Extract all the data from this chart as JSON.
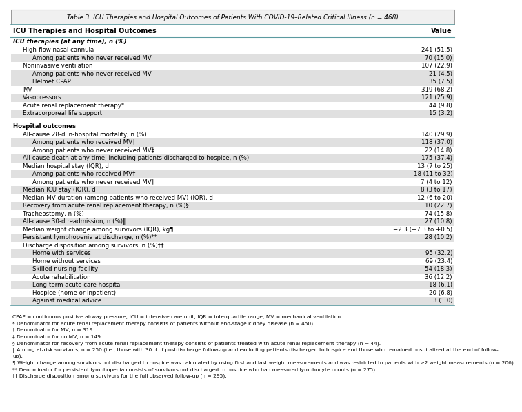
{
  "title": "Table 3. ICU Therapies and Hospital Outcomes of Patients With COVID-19–Related Critical Illness (n = 468)",
  "col1_header": "ICU Therapies and Hospital Outcomes",
  "col2_header": "Value",
  "rows": [
    {
      "label": "ICU therapies (at any time), n (%)",
      "value": "",
      "indent": 0,
      "bold": true,
      "italic": true,
      "shaded": false
    },
    {
      "label": "High-flow nasal cannula",
      "value": "241 (51.5)",
      "indent": 1,
      "bold": false,
      "italic": false,
      "shaded": false
    },
    {
      "label": "Among patients who never received MV",
      "value": "70 (15.0)",
      "indent": 2,
      "bold": false,
      "italic": false,
      "shaded": true
    },
    {
      "label": "Noninvasive ventilation",
      "value": "107 (22.9)",
      "indent": 1,
      "bold": false,
      "italic": false,
      "shaded": false
    },
    {
      "label": "Among patients who never received MV",
      "value": "21 (4.5)",
      "indent": 2,
      "bold": false,
      "italic": false,
      "shaded": true
    },
    {
      "label": "Helmet CPAP",
      "value": "35 (7.5)",
      "indent": 2,
      "bold": false,
      "italic": false,
      "shaded": true
    },
    {
      "label": "MV",
      "value": "319 (68.2)",
      "indent": 1,
      "bold": false,
      "italic": false,
      "shaded": false
    },
    {
      "label": "Vasopressors",
      "value": "121 (25.9)",
      "indent": 1,
      "bold": false,
      "italic": false,
      "shaded": true
    },
    {
      "label": "Acute renal replacement therapy*",
      "value": "44 (9.8)",
      "indent": 1,
      "bold": false,
      "italic": false,
      "shaded": false
    },
    {
      "label": "Extracorporeal life support",
      "value": "15 (3.2)",
      "indent": 1,
      "bold": false,
      "italic": false,
      "shaded": true
    },
    {
      "label": "",
      "value": "",
      "indent": 0,
      "bold": false,
      "italic": false,
      "shaded": false,
      "spacer": true
    },
    {
      "label": "Hospital outcomes",
      "value": "",
      "indent": 0,
      "bold": true,
      "italic": false,
      "shaded": false
    },
    {
      "label": "All-cause 28-d in-hospital mortality, n (%)",
      "value": "140 (29.9)",
      "indent": 1,
      "bold": false,
      "italic": false,
      "shaded": false
    },
    {
      "label": "Among patients who received MV†",
      "value": "118 (37.0)",
      "indent": 2,
      "bold": false,
      "italic": false,
      "shaded": true
    },
    {
      "label": "Among patients who never received MV‡",
      "value": "22 (14.8)",
      "indent": 2,
      "bold": false,
      "italic": false,
      "shaded": false
    },
    {
      "label": "All-cause death at any time, including patients discharged to hospice, n (%)",
      "value": "175 (37.4)",
      "indent": 1,
      "bold": false,
      "italic": false,
      "shaded": true
    },
    {
      "label": "Median hospital stay (IQR), d",
      "value": "13 (7 to 25)",
      "indent": 1,
      "bold": false,
      "italic": false,
      "shaded": false
    },
    {
      "label": "Among patients who received MV†",
      "value": "18 (11 to 32)",
      "indent": 2,
      "bold": false,
      "italic": false,
      "shaded": true
    },
    {
      "label": "Among patients who never received MV‡",
      "value": "7 (4 to 12)",
      "indent": 2,
      "bold": false,
      "italic": false,
      "shaded": false
    },
    {
      "label": "Median ICU stay (IQR), d",
      "value": "8 (3 to 17)",
      "indent": 1,
      "bold": false,
      "italic": false,
      "shaded": true
    },
    {
      "label": "Median MV duration (among patients who received MV) (IQR), d",
      "value": "12 (6 to 20)",
      "indent": 1,
      "bold": false,
      "italic": false,
      "shaded": false
    },
    {
      "label": "Recovery from acute renal replacement therapy, n (%)§",
      "value": "10 (22.7)",
      "indent": 1,
      "bold": false,
      "italic": false,
      "shaded": true
    },
    {
      "label": "Tracheostomy, n (%)",
      "value": "74 (15.8)",
      "indent": 1,
      "bold": false,
      "italic": false,
      "shaded": false
    },
    {
      "label": "All-cause 30-d readmission, n (%)‖",
      "value": "27 (10.8)",
      "indent": 1,
      "bold": false,
      "italic": false,
      "shaded": true
    },
    {
      "label": "Median weight change among survivors (IQR), kg¶",
      "value": "−2.3 (−7.3 to +0.5)",
      "indent": 1,
      "bold": false,
      "italic": false,
      "shaded": false
    },
    {
      "label": "Persistent lymphopenia at discharge, n (%)**",
      "value": "28 (10.2)",
      "indent": 1,
      "bold": false,
      "italic": false,
      "shaded": true
    },
    {
      "label": "Discharge disposition among survivors, n (%)††",
      "value": "",
      "indent": 1,
      "bold": false,
      "italic": false,
      "shaded": false
    },
    {
      "label": "Home with services",
      "value": "95 (32.2)",
      "indent": 2,
      "bold": false,
      "italic": false,
      "shaded": true
    },
    {
      "label": "Home without services",
      "value": "69 (23.4)",
      "indent": 2,
      "bold": false,
      "italic": false,
      "shaded": false
    },
    {
      "label": "Skilled nursing facility",
      "value": "54 (18.3)",
      "indent": 2,
      "bold": false,
      "italic": false,
      "shaded": true
    },
    {
      "label": "Acute rehabilitation",
      "value": "36 (12.2)",
      "indent": 2,
      "bold": false,
      "italic": false,
      "shaded": false
    },
    {
      "label": "Long-term acute care hospital",
      "value": "18 (6.1)",
      "indent": 2,
      "bold": false,
      "italic": false,
      "shaded": true
    },
    {
      "label": "Hospice (home or inpatient)",
      "value": "20 (6.8)",
      "indent": 2,
      "bold": false,
      "italic": false,
      "shaded": false
    },
    {
      "label": "Against medical advice",
      "value": "3 (1.0)",
      "indent": 2,
      "bold": false,
      "italic": false,
      "shaded": true
    }
  ],
  "footnotes": [
    "CPAP = continuous positive airway pressure; ICU = intensive care unit; IQR = interquartile range; MV = mechanical ventilation.",
    "* Denominator for acute renal replacement therapy consists of patients without end-stage kidney disease (n = 450).",
    "† Denominator for MV, n = 319.",
    "‡ Denominator for no MV, n = 149.",
    "§ Denominator for recovery from acute renal replacement therapy consists of patients treated with acute renal replacement therapy (n = 44).",
    "‖ Among at-risk survivors, n = 250 (i.e., those with 30 d of postdischarge follow-up and excluding patients discharged to hospice and those who remained hospitalized at the end of follow-up).",
    "¶ Weight change among survivors not discharged to hospice was calculated by using first and last weight measurements and was restricted to patients with ≥2 weight measurements (n = 206).",
    "** Denominator for persistent lymphopenia consists of survivors not discharged to hospice who had measured lymphocyte counts (n = 275).",
    "†† Discharge disposition among survivors for the full observed follow-up (n = 295)."
  ],
  "shade_color": "#e0e0e0",
  "title_bg": "#f0f0f0",
  "teal_color": "#5b9aa0",
  "label_fontsize": 6.2,
  "header_fontsize": 7.0,
  "title_fontsize": 6.5,
  "footnote_fontsize": 5.4
}
